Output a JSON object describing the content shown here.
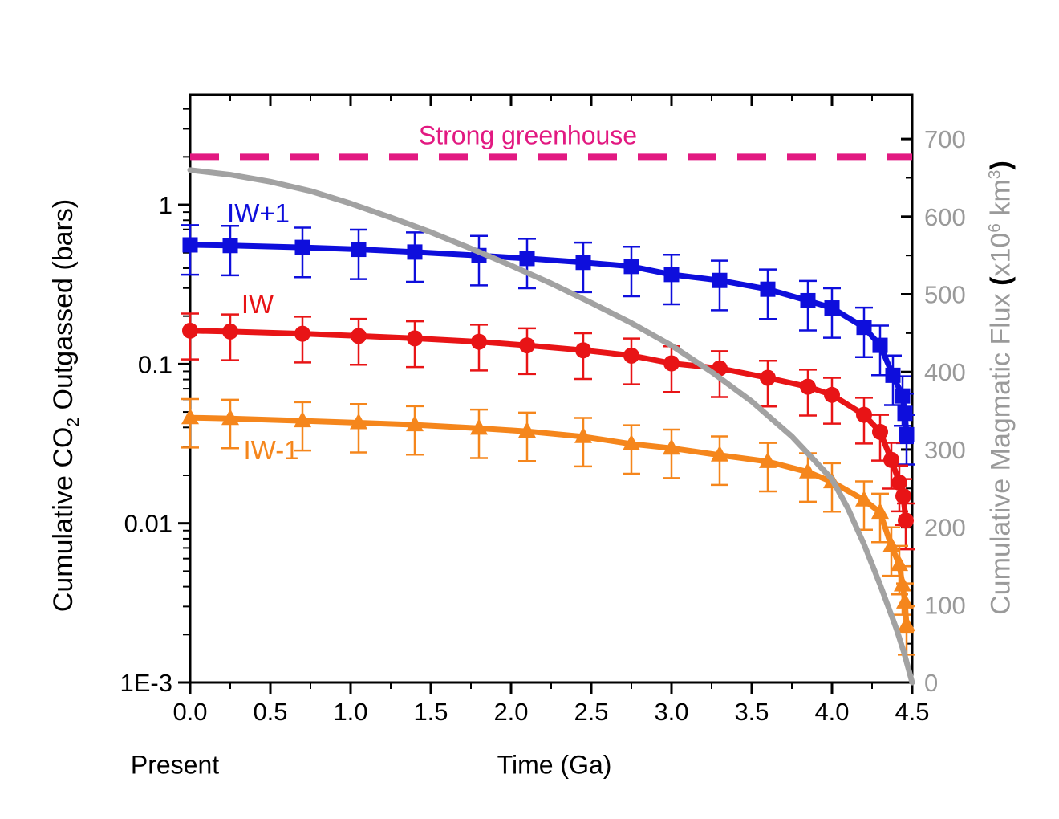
{
  "figure": {
    "type": "scientific-xy-plot",
    "background": "#ffffff"
  },
  "labels": {
    "x_axis_title": "Time (Ga)",
    "x_axis_left_note": "Present",
    "y_left_title": {
      "pre": "Cumulative CO",
      "sub": "2",
      "post": " Outgassed (bars)"
    },
    "y_right_title": {
      "pre": "Cumulative Magmatic Flux ",
      "open_paren": "(",
      "x10": "x10",
      "sup6": "6",
      "km": " km",
      "sup3": "3",
      "close_paren": ")"
    },
    "reference_label": "Strong greenhouse",
    "series_labels": {
      "iw_plus_1": "IW+1",
      "iw": "IW",
      "iw_minus_1": "IW-1"
    }
  },
  "chart_data": {
    "type": "line",
    "title": "",
    "x_axis": {
      "label": "Time (Ga)",
      "annotation_under_origin": "Present",
      "min": 0,
      "max": 4.5,
      "major_ticks": [
        0,
        0.5,
        1.0,
        1.5,
        2.0,
        2.5,
        3.0,
        3.5,
        4.0,
        4.5
      ],
      "major_tick_labels": [
        "0.0",
        "0.5",
        "1.0",
        "1.5",
        "2.0",
        "2.5",
        "3.0",
        "3.5",
        "4.0",
        "4.5"
      ],
      "minor_tick_step": 0.25
    },
    "y_left_axis": {
      "label": "Cumulative CO2 Outgassed (bars)",
      "scale": "log",
      "min": 0.001,
      "max": 4.91,
      "major_ticks": [
        0.001,
        0.01,
        0.1,
        1
      ],
      "major_tick_labels": [
        "1E-3",
        "0.01",
        "0.1",
        "1"
      ],
      "minor_ticks": "log decades 2-9"
    },
    "y_right_axis": {
      "label": "Cumulative Magmatic Flux (x10^6 km^3)",
      "scale": "linear",
      "min": 0,
      "max": 757,
      "major_ticks": [
        0,
        100,
        200,
        300,
        400,
        500,
        600,
        700
      ],
      "major_tick_labels": [
        "0",
        "100",
        "200",
        "300",
        "400",
        "500",
        "600",
        "700"
      ],
      "minor_tick_step": 50,
      "text_color": "#9A9A9A"
    },
    "reference_line": {
      "label": "Strong greenhouse",
      "value_bars": 2.0,
      "color": "#E21981",
      "style": "dashed"
    },
    "series": [
      {
        "name": "IW+1",
        "marker": "square",
        "color": "#0E0EDC",
        "y_axis": "left",
        "t_Ga": [
          0,
          0.25,
          0.7,
          1.05,
          1.4,
          1.8,
          2.1,
          2.45,
          2.75,
          3.0,
          3.3,
          3.6,
          3.85,
          4.0,
          4.2,
          4.3,
          4.38,
          4.44,
          4.455,
          4.465
        ],
        "values_bars": [
          0.56,
          0.555,
          0.54,
          0.525,
          0.505,
          0.48,
          0.46,
          0.435,
          0.41,
          0.365,
          0.335,
          0.295,
          0.25,
          0.225,
          0.17,
          0.131,
          0.085,
          0.063,
          0.049,
          0.036
        ],
        "err_up_factor": 1.33,
        "err_down_factor": 0.65
      },
      {
        "name": "IW",
        "marker": "circle",
        "color": "#E81416",
        "y_axis": "left",
        "t_Ga": [
          0,
          0.25,
          0.7,
          1.05,
          1.4,
          1.8,
          2.1,
          2.45,
          2.75,
          3.0,
          3.3,
          3.6,
          3.85,
          4.0,
          4.2,
          4.3,
          4.37,
          4.42,
          4.445,
          4.46
        ],
        "values_bars": [
          0.162,
          0.16,
          0.155,
          0.15,
          0.145,
          0.138,
          0.131,
          0.122,
          0.113,
          0.101,
          0.094,
          0.082,
          0.072,
          0.064,
          0.048,
          0.0375,
          0.025,
          0.018,
          0.0148,
          0.0104
        ],
        "err_up_factor": 1.28,
        "err_down_factor": 0.66
      },
      {
        "name": "IW-1",
        "marker": "triangle",
        "color": "#F5861C",
        "y_axis": "left",
        "t_Ga": [
          0,
          0.25,
          0.7,
          1.05,
          1.4,
          1.8,
          2.1,
          2.45,
          2.75,
          3.0,
          3.3,
          3.6,
          3.85,
          4.0,
          4.2,
          4.3,
          4.37,
          4.42,
          4.44,
          4.455,
          4.465
        ],
        "values_bars": [
          0.046,
          0.0455,
          0.044,
          0.0428,
          0.0415,
          0.0395,
          0.0378,
          0.035,
          0.0315,
          0.0296,
          0.0268,
          0.0244,
          0.021,
          0.0182,
          0.014,
          0.0117,
          0.0072,
          0.0055,
          0.0041,
          0.0032,
          0.0023
        ],
        "err_up_factor": 1.31,
        "err_down_factor": 0.65
      },
      {
        "name": "Cumulative Magmatic Flux",
        "marker": "none",
        "color": "#A2A2A2",
        "y_axis": "right",
        "t_Ga": [
          0,
          0.25,
          0.5,
          0.75,
          1.0,
          1.25,
          1.5,
          1.75,
          2.0,
          2.25,
          2.5,
          2.75,
          3.0,
          3.25,
          3.5,
          3.75,
          4.0,
          4.1,
          4.2,
          4.3,
          4.4,
          4.45,
          4.5
        ],
        "values_1e6km3": [
          660,
          654,
          645,
          633,
          617,
          599,
          580,
          559,
          537,
          514,
          489,
          463,
          434,
          400,
          362,
          317,
          262,
          224,
          178,
          126,
          70,
          38,
          0
        ]
      }
    ]
  }
}
